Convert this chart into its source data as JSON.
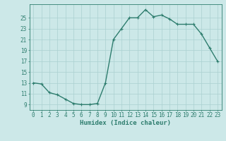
{
  "x": [
    0,
    1,
    2,
    3,
    4,
    5,
    6,
    7,
    8,
    9,
    10,
    11,
    12,
    13,
    14,
    15,
    16,
    17,
    18,
    19,
    20,
    21,
    22,
    23
  ],
  "y": [
    13,
    12.8,
    11.2,
    10.8,
    10.0,
    9.2,
    9.0,
    9.0,
    9.2,
    13.0,
    21.0,
    23.0,
    25.0,
    25.0,
    26.5,
    25.2,
    25.5,
    24.8,
    23.8,
    23.8,
    23.8,
    22.0,
    19.5,
    17.0
  ],
  "line_color": "#2e7d6e",
  "marker": "+",
  "marker_size": 3,
  "marker_linewidth": 0.8,
  "bg_color": "#cce8e8",
  "grid_color": "#aad0d0",
  "spine_color": "#2e7d6e",
  "tick_color": "#2e7d6e",
  "xlabel": "Humidex (Indice chaleur)",
  "xlabel_fontsize": 6.5,
  "ylabel_ticks": [
    9,
    11,
    13,
    15,
    17,
    19,
    21,
    23,
    25
  ],
  "xlim": [
    -0.5,
    23.5
  ],
  "ylim": [
    8.0,
    27.5
  ],
  "xticks": [
    0,
    1,
    2,
    3,
    4,
    5,
    6,
    7,
    8,
    9,
    10,
    11,
    12,
    13,
    14,
    15,
    16,
    17,
    18,
    19,
    20,
    21,
    22,
    23
  ],
  "xtick_labels": [
    "0",
    "1",
    "2",
    "3",
    "4",
    "5",
    "6",
    "7",
    "8",
    "9",
    "10",
    "11",
    "12",
    "13",
    "14",
    "15",
    "16",
    "17",
    "18",
    "19",
    "20",
    "21",
    "22",
    "23"
  ],
  "tick_fontsize": 5.5,
  "line_width": 1.0
}
